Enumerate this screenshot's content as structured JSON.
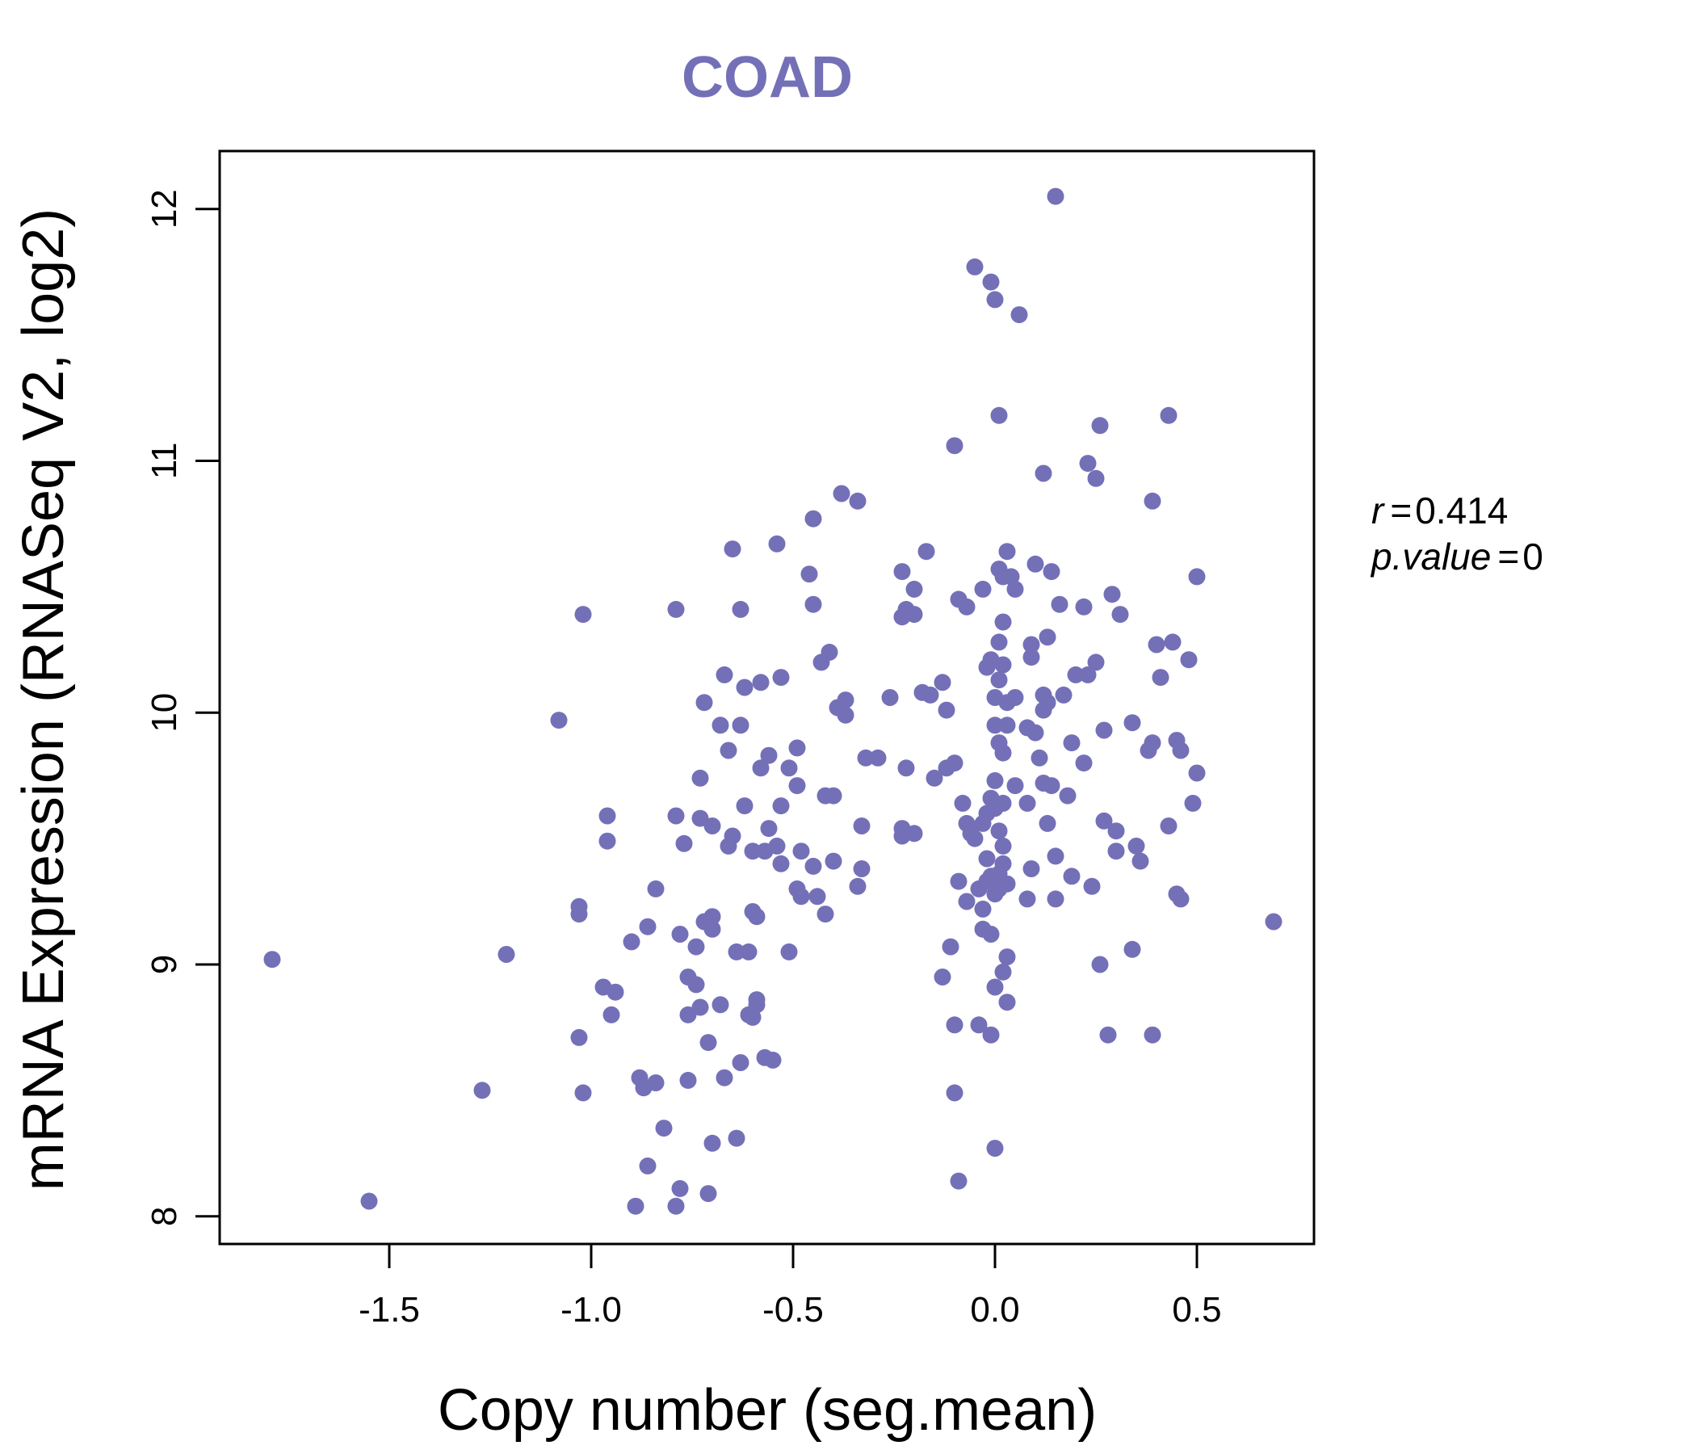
{
  "chart_data": {
    "type": "scatter",
    "title": "COAD",
    "xlabel": "Copy number (seg.mean)",
    "ylabel": "mRNA Expression (RNASeq V2, log2)",
    "xlim": [
      -1.92,
      0.79
    ],
    "ylim": [
      7.89,
      12.23
    ],
    "xticks": [
      -1.5,
      -1.0,
      -0.5,
      0.0,
      0.5
    ],
    "xtick_labels": [
      "-1.5",
      "-1.0",
      "-0.5",
      "0.0",
      "0.5"
    ],
    "yticks": [
      8,
      9,
      10,
      11,
      12
    ],
    "ytick_labels": [
      "8",
      "9",
      "10",
      "11",
      "12"
    ],
    "grid": false,
    "legend": null,
    "annotations": {
      "r_label": "r",
      "r_value": "0.414",
      "p_label": "p.value",
      "p_value": "0"
    },
    "colors": {
      "points": "#7470b7",
      "title": "#7470b7",
      "axis": "#000000"
    },
    "points": [
      [
        -1.79,
        9.02
      ],
      [
        -1.55,
        8.06
      ],
      [
        -1.27,
        8.5
      ],
      [
        -1.21,
        9.04
      ],
      [
        -1.08,
        9.97
      ],
      [
        -1.03,
        9.2
      ],
      [
        -1.03,
        9.23
      ],
      [
        -1.02,
        10.39
      ],
      [
        -1.03,
        8.71
      ],
      [
        -1.02,
        8.49
      ],
      [
        -0.96,
        9.59
      ],
      [
        -0.96,
        9.49
      ],
      [
        -0.97,
        8.91
      ],
      [
        -0.94,
        8.89
      ],
      [
        -0.95,
        8.8
      ],
      [
        -0.9,
        9.09
      ],
      [
        -0.89,
        8.04
      ],
      [
        -0.88,
        8.55
      ],
      [
        -0.87,
        8.51
      ],
      [
        -0.86,
        9.15
      ],
      [
        -0.86,
        8.2
      ],
      [
        -0.84,
        8.53
      ],
      [
        -0.84,
        9.3
      ],
      [
        -0.82,
        8.35
      ],
      [
        -0.79,
        10.41
      ],
      [
        -0.79,
        9.59
      ],
      [
        -0.79,
        8.04
      ],
      [
        -0.78,
        9.12
      ],
      [
        -0.78,
        8.11
      ],
      [
        -0.77,
        9.48
      ],
      [
        -0.76,
        8.95
      ],
      [
        -0.76,
        8.8
      ],
      [
        -0.76,
        8.54
      ],
      [
        -0.74,
        9.07
      ],
      [
        -0.74,
        8.92
      ],
      [
        -0.73,
        9.58
      ],
      [
        -0.73,
        9.74
      ],
      [
        -0.73,
        8.83
      ],
      [
        -0.72,
        10.04
      ],
      [
        -0.72,
        9.17
      ],
      [
        -0.71,
        8.69
      ],
      [
        -0.71,
        8.09
      ],
      [
        -0.7,
        9.55
      ],
      [
        -0.7,
        9.19
      ],
      [
        -0.7,
        9.14
      ],
      [
        -0.7,
        8.29
      ],
      [
        -0.68,
        9.95
      ],
      [
        -0.68,
        8.84
      ],
      [
        -0.67,
        10.15
      ],
      [
        -0.67,
        8.55
      ],
      [
        -0.66,
        9.85
      ],
      [
        -0.66,
        9.47
      ],
      [
        -0.65,
        9.51
      ],
      [
        -0.65,
        10.65
      ],
      [
        -0.64,
        9.05
      ],
      [
        -0.64,
        8.31
      ],
      [
        -0.63,
        10.41
      ],
      [
        -0.63,
        9.95
      ],
      [
        -0.63,
        8.61
      ],
      [
        -0.62,
        9.63
      ],
      [
        -0.62,
        10.1
      ],
      [
        -0.61,
        8.8
      ],
      [
        -0.61,
        9.05
      ],
      [
        -0.6,
        9.21
      ],
      [
        -0.6,
        9.45
      ],
      [
        -0.6,
        8.79
      ],
      [
        -0.59,
        8.86
      ],
      [
        -0.59,
        8.84
      ],
      [
        -0.59,
        9.19
      ],
      [
        -0.58,
        10.12
      ],
      [
        -0.58,
        9.78
      ],
      [
        -0.57,
        9.45
      ],
      [
        -0.57,
        8.63
      ],
      [
        -0.56,
        9.83
      ],
      [
        -0.56,
        9.54
      ],
      [
        -0.55,
        8.62
      ],
      [
        -0.54,
        9.47
      ],
      [
        -0.54,
        10.67
      ],
      [
        -0.53,
        9.4
      ],
      [
        -0.53,
        9.63
      ],
      [
        -0.53,
        10.14
      ],
      [
        -0.51,
        9.78
      ],
      [
        -0.51,
        9.05
      ],
      [
        -0.49,
        9.86
      ],
      [
        -0.49,
        9.3
      ],
      [
        -0.49,
        9.71
      ],
      [
        -0.48,
        9.45
      ],
      [
        -0.48,
        9.27
      ],
      [
        -0.46,
        10.55
      ],
      [
        -0.45,
        10.43
      ],
      [
        -0.45,
        10.77
      ],
      [
        -0.45,
        9.39
      ],
      [
        -0.44,
        9.27
      ],
      [
        -0.43,
        10.2
      ],
      [
        -0.42,
        9.67
      ],
      [
        -0.42,
        9.2
      ],
      [
        -0.41,
        10.24
      ],
      [
        -0.4,
        9.67
      ],
      [
        -0.4,
        9.41
      ],
      [
        -0.39,
        10.02
      ],
      [
        -0.38,
        10.87
      ],
      [
        -0.37,
        10.05
      ],
      [
        -0.37,
        9.99
      ],
      [
        -0.34,
        10.84
      ],
      [
        -0.34,
        9.31
      ],
      [
        -0.33,
        9.38
      ],
      [
        -0.33,
        9.55
      ],
      [
        -0.32,
        9.82
      ],
      [
        -0.29,
        9.82
      ],
      [
        -0.26,
        10.06
      ],
      [
        -0.23,
        10.56
      ],
      [
        -0.23,
        10.38
      ],
      [
        -0.23,
        9.54
      ],
      [
        -0.23,
        9.51
      ],
      [
        -0.22,
        10.41
      ],
      [
        -0.22,
        9.78
      ],
      [
        -0.2,
        10.49
      ],
      [
        -0.2,
        10.39
      ],
      [
        -0.2,
        9.52
      ],
      [
        -0.18,
        10.08
      ],
      [
        -0.17,
        10.64
      ],
      [
        -0.16,
        10.07
      ],
      [
        -0.15,
        9.74
      ],
      [
        -0.13,
        10.12
      ],
      [
        -0.13,
        8.95
      ],
      [
        -0.12,
        10.01
      ],
      [
        -0.12,
        9.78
      ],
      [
        -0.11,
        9.07
      ],
      [
        -0.1,
        11.06
      ],
      [
        -0.1,
        9.8
      ],
      [
        -0.1,
        8.76
      ],
      [
        -0.1,
        8.49
      ],
      [
        -0.09,
        10.45
      ],
      [
        -0.09,
        9.33
      ],
      [
        -0.09,
        8.14
      ],
      [
        -0.08,
        9.64
      ],
      [
        -0.07,
        10.42
      ],
      [
        -0.07,
        9.56
      ],
      [
        -0.07,
        9.25
      ],
      [
        -0.06,
        9.52
      ],
      [
        -0.05,
        11.77
      ],
      [
        -0.05,
        9.5
      ],
      [
        -0.04,
        8.76
      ],
      [
        -0.04,
        9.3
      ],
      [
        -0.03,
        9.56
      ],
      [
        -0.03,
        9.22
      ],
      [
        -0.03,
        9.14
      ],
      [
        -0.03,
        10.49
      ],
      [
        -0.02,
        10.18
      ],
      [
        -0.02,
        9.6
      ],
      [
        -0.02,
        9.42
      ],
      [
        -0.02,
        9.33
      ],
      [
        -0.01,
        11.71
      ],
      [
        -0.01,
        10.21
      ],
      [
        -0.01,
        9.66
      ],
      [
        -0.01,
        9.35
      ],
      [
        -0.01,
        8.72
      ],
      [
        -0.01,
        9.12
      ],
      [
        0.0,
        11.64
      ],
      [
        0.0,
        10.06
      ],
      [
        0.0,
        9.95
      ],
      [
        0.0,
        9.73
      ],
      [
        0.0,
        9.62
      ],
      [
        0.0,
        9.28
      ],
      [
        0.0,
        8.91
      ],
      [
        0.0,
        8.27
      ],
      [
        0.01,
        10.57
      ],
      [
        0.01,
        10.28
      ],
      [
        0.01,
        10.13
      ],
      [
        0.01,
        9.88
      ],
      [
        0.01,
        9.53
      ],
      [
        0.01,
        9.36
      ],
      [
        0.01,
        9.3
      ],
      [
        0.01,
        11.18
      ],
      [
        0.02,
        10.54
      ],
      [
        0.02,
        10.36
      ],
      [
        0.02,
        10.19
      ],
      [
        0.02,
        9.84
      ],
      [
        0.02,
        9.64
      ],
      [
        0.02,
        9.47
      ],
      [
        0.02,
        9.4
      ],
      [
        0.02,
        8.97
      ],
      [
        0.03,
        10.64
      ],
      [
        0.03,
        10.04
      ],
      [
        0.03,
        9.95
      ],
      [
        0.03,
        9.32
      ],
      [
        0.03,
        9.03
      ],
      [
        0.03,
        8.85
      ],
      [
        0.04,
        10.54
      ],
      [
        0.05,
        10.49
      ],
      [
        0.05,
        9.71
      ],
      [
        0.05,
        10.06
      ],
      [
        0.06,
        11.58
      ],
      [
        0.08,
        9.94
      ],
      [
        0.08,
        9.64
      ],
      [
        0.08,
        9.26
      ],
      [
        0.09,
        10.27
      ],
      [
        0.09,
        10.22
      ],
      [
        0.09,
        9.38
      ],
      [
        0.1,
        10.59
      ],
      [
        0.1,
        9.92
      ],
      [
        0.11,
        9.82
      ],
      [
        0.12,
        10.07
      ],
      [
        0.12,
        10.01
      ],
      [
        0.12,
        10.95
      ],
      [
        0.12,
        9.72
      ],
      [
        0.13,
        10.3
      ],
      [
        0.13,
        10.04
      ],
      [
        0.13,
        9.56
      ],
      [
        0.14,
        10.56
      ],
      [
        0.14,
        9.71
      ],
      [
        0.15,
        12.05
      ],
      [
        0.15,
        9.43
      ],
      [
        0.15,
        9.26
      ],
      [
        0.16,
        10.43
      ],
      [
        0.17,
        10.07
      ],
      [
        0.18,
        9.67
      ],
      [
        0.19,
        9.88
      ],
      [
        0.19,
        9.35
      ],
      [
        0.2,
        10.15
      ],
      [
        0.22,
        10.42
      ],
      [
        0.22,
        9.8
      ],
      [
        0.23,
        10.99
      ],
      [
        0.23,
        10.15
      ],
      [
        0.24,
        9.31
      ],
      [
        0.25,
        10.93
      ],
      [
        0.25,
        10.2
      ],
      [
        0.26,
        9.0
      ],
      [
        0.26,
        11.14
      ],
      [
        0.27,
        9.93
      ],
      [
        0.27,
        9.57
      ],
      [
        0.28,
        8.72
      ],
      [
        0.29,
        10.47
      ],
      [
        0.3,
        9.53
      ],
      [
        0.3,
        9.45
      ],
      [
        0.31,
        10.39
      ],
      [
        0.34,
        9.96
      ],
      [
        0.34,
        9.06
      ],
      [
        0.35,
        9.47
      ],
      [
        0.36,
        9.41
      ],
      [
        0.38,
        9.85
      ],
      [
        0.39,
        9.88
      ],
      [
        0.39,
        10.84
      ],
      [
        0.39,
        8.72
      ],
      [
        0.4,
        10.27
      ],
      [
        0.41,
        10.14
      ],
      [
        0.43,
        9.55
      ],
      [
        0.43,
        11.18
      ],
      [
        0.44,
        10.28
      ],
      [
        0.45,
        9.89
      ],
      [
        0.45,
        9.28
      ],
      [
        0.46,
        9.26
      ],
      [
        0.46,
        9.85
      ],
      [
        0.48,
        10.21
      ],
      [
        0.49,
        9.64
      ],
      [
        0.5,
        9.76
      ],
      [
        0.5,
        10.54
      ],
      [
        0.69,
        9.17
      ]
    ]
  }
}
